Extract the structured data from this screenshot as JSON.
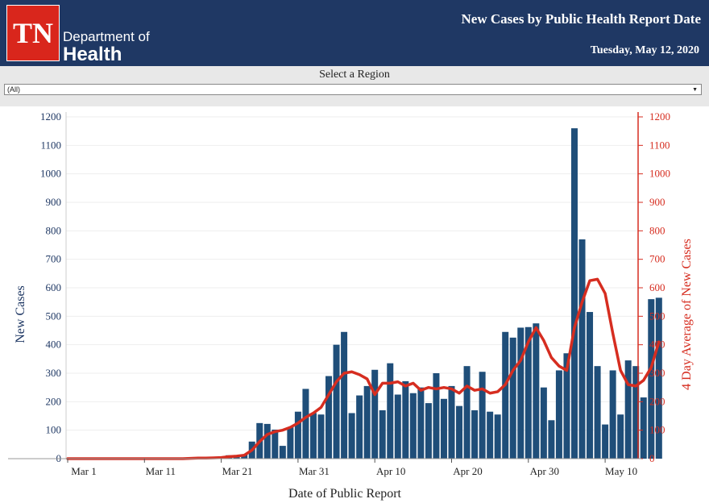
{
  "header": {
    "logo_text": "TN",
    "dept_line1": "Department of",
    "dept_line2": "Health",
    "title": "New Cases by Public Health Report Date",
    "date": "Tuesday, May 12, 2020"
  },
  "region": {
    "label": "Select a Region",
    "selected": "(All)"
  },
  "colors": {
    "bar": "#1f4e79",
    "line": "#d62d20",
    "header_bg": "#1f3864"
  },
  "chart_data": {
    "type": "bar",
    "xlabel": "Date of Public Report",
    "ylabel": "New Cases",
    "y2label": "4 Day Average of New Cases",
    "ylim": [
      0,
      1200
    ],
    "y2lim": [
      0,
      1200
    ],
    "yticks": [
      0,
      100,
      200,
      300,
      400,
      500,
      600,
      700,
      800,
      900,
      1000,
      1100,
      1200
    ],
    "xticks": [
      "Mar 1",
      "Mar 11",
      "Mar 21",
      "Mar 31",
      "Apr 10",
      "Apr 20",
      "Apr 30",
      "May 10"
    ],
    "bar_series": {
      "name": "New Cases",
      "start_date": "Mar 1",
      "values": [
        0,
        0,
        0,
        0,
        0,
        0,
        0,
        0,
        0,
        0,
        0,
        0,
        0,
        0,
        0,
        0,
        1,
        3,
        3,
        5,
        6,
        12,
        12,
        15,
        60,
        125,
        122,
        102,
        45,
        110,
        165,
        245,
        160,
        155,
        290,
        400,
        445,
        160,
        222,
        255,
        312,
        170,
        335,
        225,
        272,
        230,
        250,
        195,
        300,
        210,
        255,
        185,
        325,
        170,
        305,
        165,
        155,
        445,
        425,
        460,
        462,
        475,
        250,
        135,
        310,
        370,
        1160,
        770,
        515,
        325,
        120,
        310,
        155,
        345,
        325,
        215,
        560,
        565
      ]
    },
    "line_series": {
      "name": "4 Day Average of New Cases",
      "start_date": "Mar 1",
      "values": [
        0,
        0,
        0,
        0,
        0,
        0,
        0,
        0,
        0,
        0,
        0,
        0,
        0,
        0,
        0,
        0,
        1,
        2,
        2,
        3,
        4,
        7,
        9,
        12,
        30,
        60,
        85,
        95,
        100,
        110,
        125,
        145,
        160,
        180,
        225,
        270,
        300,
        305,
        295,
        280,
        225,
        265,
        265,
        270,
        255,
        265,
        240,
        250,
        245,
        250,
        245,
        230,
        255,
        240,
        245,
        230,
        235,
        260,
        310,
        345,
        410,
        460,
        415,
        355,
        325,
        310,
        460,
        550,
        625,
        630,
        580,
        440,
        310,
        260,
        255,
        275,
        320,
        410
      ]
    }
  }
}
